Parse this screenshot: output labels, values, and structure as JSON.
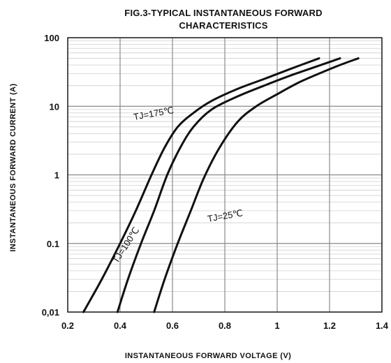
{
  "chart_data": {
    "type": "line",
    "title": "FIG.3-TYPICAL INSTANTANEOUS FORWARD",
    "subtitle": "CHARACTERISTICS",
    "xlabel": "INSTANTANEOUS FORWARD VOLTAGE (V)",
    "ylabel": "INSTANTANEOUS FORWARD CURRENT (A)",
    "xlim": [
      0.2,
      1.4
    ],
    "ylim": [
      0.01,
      100
    ],
    "yscale": "log",
    "grid": true,
    "x_ticks": [
      0.2,
      0.4,
      0.6,
      0.8,
      1.0,
      1.2,
      1.4
    ],
    "x_tick_labels": [
      "0.2",
      "0.4",
      "0.6",
      "0.8",
      "1",
      "1.2",
      "1.4"
    ],
    "y_ticks": [
      0.01,
      0.1,
      1,
      10,
      100
    ],
    "y_tick_labels": [
      "0,01",
      "0.1",
      "1",
      "10",
      "100"
    ],
    "series": [
      {
        "name": "TJ=175℃",
        "x": [
          0.26,
          0.33,
          0.4,
          0.46,
          0.52,
          0.57,
          0.62,
          0.68,
          0.75,
          0.85,
          0.95,
          1.05,
          1.16
        ],
        "y": [
          0.01,
          0.03,
          0.1,
          0.3,
          1.0,
          2.5,
          5.0,
          8.0,
          12.0,
          18.0,
          25.0,
          35.0,
          50.0
        ]
      },
      {
        "name": "TJ=100℃",
        "x": [
          0.39,
          0.43,
          0.48,
          0.53,
          0.58,
          0.63,
          0.68,
          0.75,
          0.85,
          0.95,
          1.05,
          1.15,
          1.24
        ],
        "y": [
          0.01,
          0.03,
          0.1,
          0.3,
          1.0,
          2.5,
          5.0,
          9.0,
          14.0,
          20.0,
          28.0,
          38.0,
          50.0
        ]
      },
      {
        "name": "TJ=25℃",
        "x": [
          0.53,
          0.57,
          0.62,
          0.67,
          0.72,
          0.78,
          0.85,
          0.92,
          1.0,
          1.08,
          1.16,
          1.24,
          1.31
        ],
        "y": [
          0.01,
          0.03,
          0.1,
          0.3,
          0.9,
          2.5,
          6.0,
          10.0,
          15.0,
          22.0,
          30.0,
          40.0,
          50.0
        ]
      }
    ],
    "colors": {
      "line": "#111111",
      "grid_major": "#8a8a8a",
      "grid_minor": "#cfcfcf",
      "background": "#ffffff"
    }
  }
}
